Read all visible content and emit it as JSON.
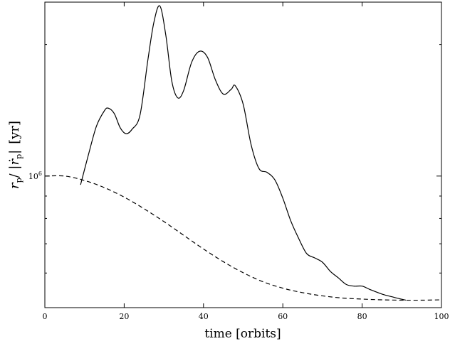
{
  "chart_data": {
    "type": "line",
    "xlabel": "time [orbits]",
    "ylabel_main": "r",
    "ylabel_sub": "p",
    "ylabel_mid": "/ |",
    "ylabel_dot": "ṙ",
    "ylabel_sub2": "p",
    "ylabel_end": "|",
    "ylabel_unit": "[yr]",
    "xlim": [
      0,
      100
    ],
    "y_scale": "log",
    "ylim": [
      500000.0,
      2500000.0
    ],
    "x_ticks": [
      0,
      20,
      40,
      60,
      80,
      100
    ],
    "x_tick_labels": [
      "0",
      "20",
      "40",
      "60",
      "80",
      "100"
    ],
    "y_major_tick": 1000000,
    "y_major_tick_label_base": "10",
    "y_major_tick_label_exp": "6",
    "y_minor_ticks": [
      600000,
      700000,
      800000,
      900000,
      2000000
    ],
    "grid": false,
    "series": [
      {
        "style": "solid",
        "x": [
          9.0,
          11.0,
          13.0,
          15.0,
          16.0,
          17.5,
          19.0,
          20.5,
          22.0,
          24.0,
          26.0,
          27.5,
          29.0,
          30.5,
          32.0,
          33.5,
          35.0,
          37.0,
          39.0,
          41.0,
          43.0,
          45.0,
          47.0,
          48.0,
          50.0,
          52.0,
          54.0,
          56.0,
          58.0,
          60.0,
          62.0,
          64.0,
          66.0,
          68.0,
          70.0,
          72.0,
          74.0,
          76.0,
          78.0,
          80.0,
          82.0,
          85.0,
          88.0,
          91.0
        ],
        "values": [
          955000,
          1120000,
          1300000,
          1410000,
          1430000,
          1390000,
          1290000,
          1250000,
          1280000,
          1380000,
          1850000,
          2250000,
          2450000,
          2100000,
          1650000,
          1510000,
          1570000,
          1820000,
          1930000,
          1870000,
          1660000,
          1540000,
          1580000,
          1610000,
          1460000,
          1180000,
          1040000,
          1020000,
          980000,
          890000,
          790000,
          720000,
          665000,
          650000,
          635000,
          605000,
          585000,
          565000,
          560000,
          560000,
          550000,
          537000,
          528000,
          520000
        ]
      },
      {
        "style": "dashed",
        "x": [
          0,
          5,
          10,
          15,
          20,
          25,
          30,
          35,
          40,
          45,
          50,
          55,
          60,
          65,
          70,
          75,
          80,
          85,
          90,
          95,
          100
        ],
        "values": [
          1000000,
          1000000,
          977000,
          941000,
          895000,
          842000,
          787000,
          732000,
          681000,
          637000,
          601000,
          573000,
          554000,
          541000,
          532000,
          526000,
          523000,
          521000,
          520000,
          520000,
          521000
        ]
      }
    ]
  }
}
